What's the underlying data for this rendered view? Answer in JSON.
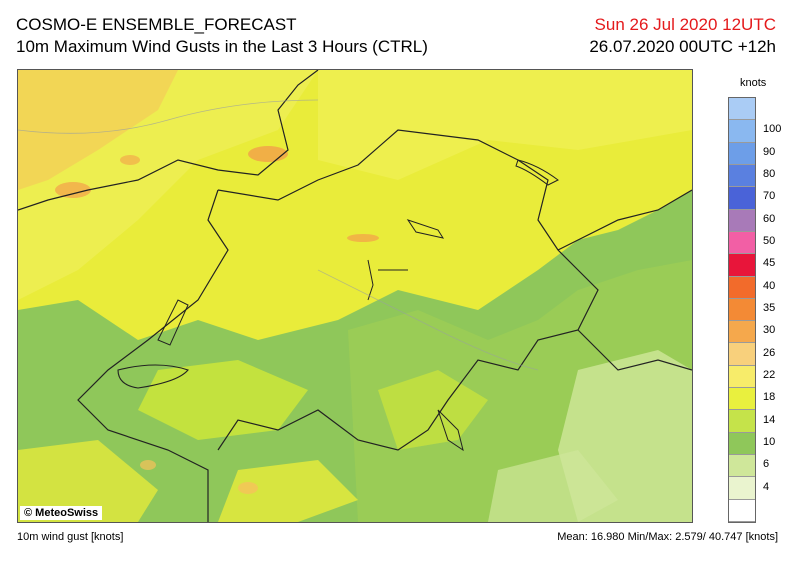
{
  "header": {
    "title_line1": "COSMO-E ENSEMBLE_FORECAST",
    "title_line2": "10m Maximum Wind Gusts in the Last 3 Hours (CTRL)",
    "valid_time": "Sun 26 Jul 2020 12UTC",
    "run_time": "26.07.2020 00UTC +12h"
  },
  "map": {
    "copyright": "© MeteoSwiss",
    "colors": {
      "land_low": "#8fc75a",
      "land_mid": "#cde63a",
      "land_high": "#eef04a",
      "gust_orange": "#f3a04a",
      "border": "#222222",
      "lakes": "#222222"
    }
  },
  "legend": {
    "unit": "knots",
    "bands": [
      {
        "label": "",
        "color": "#aaccf5"
      },
      {
        "label": "100",
        "color": "#8ab8f0"
      },
      {
        "label": "90",
        "color": "#6d9ee8"
      },
      {
        "label": "80",
        "color": "#5a80e0"
      },
      {
        "label": "70",
        "color": "#4a63d8"
      },
      {
        "label": "60",
        "color": "#a87ab8"
      },
      {
        "label": "50",
        "color": "#f25fa5"
      },
      {
        "label": "45",
        "color": "#e8153a"
      },
      {
        "label": "40",
        "color": "#f26b2b"
      },
      {
        "label": "35",
        "color": "#f38a35"
      },
      {
        "label": "30",
        "color": "#f5a84c"
      },
      {
        "label": "26",
        "color": "#f8d07c"
      },
      {
        "label": "22",
        "color": "#f7ec6a"
      },
      {
        "label": "18",
        "color": "#e9f03e"
      },
      {
        "label": "14",
        "color": "#c5e34a"
      },
      {
        "label": "10",
        "color": "#8fc75a"
      },
      {
        "label": "6",
        "color": "#cfe79a"
      },
      {
        "label": "4",
        "color": "#eaf4cf"
      },
      {
        "label": "",
        "color": "#ffffff"
      }
    ]
  },
  "footer": {
    "variable": "10m wind gust [knots]",
    "stats": "Mean:  16.980 Min/Max:   2.579/ 40.747 [knots]"
  }
}
